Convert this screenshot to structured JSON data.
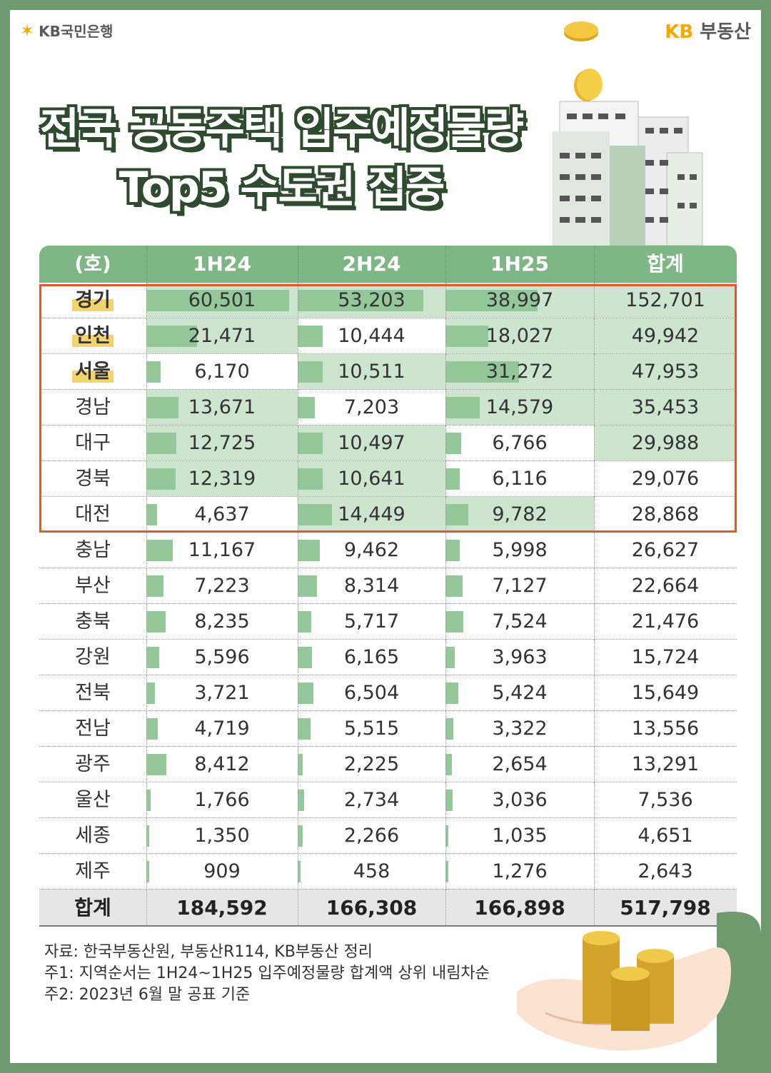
{
  "brand": {
    "bank": "KB국민은행",
    "land_prefix": "KB",
    "land_suffix": "부동산"
  },
  "title": {
    "line1": "전국 공동주택 입주예정물량",
    "line2": "Top5 수도권 집중"
  },
  "colors": {
    "header": "#7fb685",
    "bar": "#94c79a",
    "highlight_bg": "#cde5cf",
    "box": "#e2572b",
    "frame": "#6f9a70"
  },
  "chart_data": {
    "type": "table",
    "unit_label": "(호)",
    "columns": [
      "1H24",
      "2H24",
      "1H25",
      "합계"
    ],
    "bar_max": 60501,
    "rows": [
      {
        "region": "경기",
        "highlight": true,
        "values": [
          "60,501",
          "53,203",
          "38,997",
          "152,701"
        ],
        "nums": [
          60501,
          53203,
          38997
        ],
        "shade": [
          true,
          true,
          true,
          true
        ]
      },
      {
        "region": "인천",
        "highlight": true,
        "values": [
          "21,471",
          "10,444",
          "18,027",
          "49,942"
        ],
        "nums": [
          21471,
          10444,
          18027
        ],
        "shade": [
          true,
          false,
          true,
          true
        ]
      },
      {
        "region": "서울",
        "highlight": true,
        "values": [
          "6,170",
          "10,511",
          "31,272",
          "47,953"
        ],
        "nums": [
          6170,
          10511,
          31272
        ],
        "shade": [
          false,
          true,
          true,
          true
        ]
      },
      {
        "region": "경남",
        "highlight": false,
        "values": [
          "13,671",
          "7,203",
          "14,579",
          "35,453"
        ],
        "nums": [
          13671,
          7203,
          14579
        ],
        "shade": [
          true,
          false,
          true,
          true
        ]
      },
      {
        "region": "대구",
        "highlight": false,
        "values": [
          "12,725",
          "10,497",
          "6,766",
          "29,988"
        ],
        "nums": [
          12725,
          10497,
          6766
        ],
        "shade": [
          true,
          true,
          false,
          true
        ]
      },
      {
        "region": "경북",
        "highlight": false,
        "values": [
          "12,319",
          "10,641",
          "6,116",
          "29,076"
        ],
        "nums": [
          12319,
          10641,
          6116
        ],
        "shade": [
          true,
          true,
          false,
          false
        ]
      },
      {
        "region": "대전",
        "highlight": false,
        "values": [
          "4,637",
          "14,449",
          "9,782",
          "28,868"
        ],
        "nums": [
          4637,
          14449,
          9782
        ],
        "shade": [
          false,
          true,
          true,
          false
        ]
      },
      {
        "region": "충남",
        "highlight": false,
        "values": [
          "11,167",
          "9,462",
          "5,998",
          "26,627"
        ],
        "nums": [
          11167,
          9462,
          5998
        ],
        "shade": [
          false,
          false,
          false,
          false
        ]
      },
      {
        "region": "부산",
        "highlight": false,
        "values": [
          "7,223",
          "8,314",
          "7,127",
          "22,664"
        ],
        "nums": [
          7223,
          8314,
          7127
        ],
        "shade": [
          false,
          false,
          false,
          false
        ]
      },
      {
        "region": "충북",
        "highlight": false,
        "values": [
          "8,235",
          "5,717",
          "7,524",
          "21,476"
        ],
        "nums": [
          8235,
          5717,
          7524
        ],
        "shade": [
          false,
          false,
          false,
          false
        ]
      },
      {
        "region": "강원",
        "highlight": false,
        "values": [
          "5,596",
          "6,165",
          "3,963",
          "15,724"
        ],
        "nums": [
          5596,
          6165,
          3963
        ],
        "shade": [
          false,
          false,
          false,
          false
        ]
      },
      {
        "region": "전북",
        "highlight": false,
        "values": [
          "3,721",
          "6,504",
          "5,424",
          "15,649"
        ],
        "nums": [
          3721,
          6504,
          5424
        ],
        "shade": [
          false,
          false,
          false,
          false
        ]
      },
      {
        "region": "전남",
        "highlight": false,
        "values": [
          "4,719",
          "5,515",
          "3,322",
          "13,556"
        ],
        "nums": [
          4719,
          5515,
          3322
        ],
        "shade": [
          false,
          false,
          false,
          false
        ]
      },
      {
        "region": "광주",
        "highlight": false,
        "values": [
          "8,412",
          "2,225",
          "2,654",
          "13,291"
        ],
        "nums": [
          8412,
          2225,
          2654
        ],
        "shade": [
          false,
          false,
          false,
          false
        ]
      },
      {
        "region": "울산",
        "highlight": false,
        "values": [
          "1,766",
          "2,734",
          "3,036",
          "7,536"
        ],
        "nums": [
          1766,
          2734,
          3036
        ],
        "shade": [
          false,
          false,
          false,
          false
        ]
      },
      {
        "region": "세종",
        "highlight": false,
        "values": [
          "1,350",
          "2,266",
          "1,035",
          "4,651"
        ],
        "nums": [
          1350,
          2266,
          1035
        ],
        "shade": [
          false,
          false,
          false,
          false
        ]
      },
      {
        "region": "제주",
        "highlight": false,
        "values": [
          "909",
          "458",
          "1,276",
          "2,643"
        ],
        "nums": [
          909,
          458,
          1276
        ],
        "shade": [
          false,
          false,
          false,
          false
        ]
      }
    ],
    "total": {
      "label": "합계",
      "values": [
        "184,592",
        "166,308",
        "166,898",
        "517,798"
      ]
    }
  },
  "notes": [
    "자료: 한국부동산원, 부동산R114, KB부동산 정리",
    "주1: 지역순서는 1H24~1H25 입주예정물량 합계액 상위 내림차순",
    "주2: 2023년 6월 말 공표 기준"
  ]
}
